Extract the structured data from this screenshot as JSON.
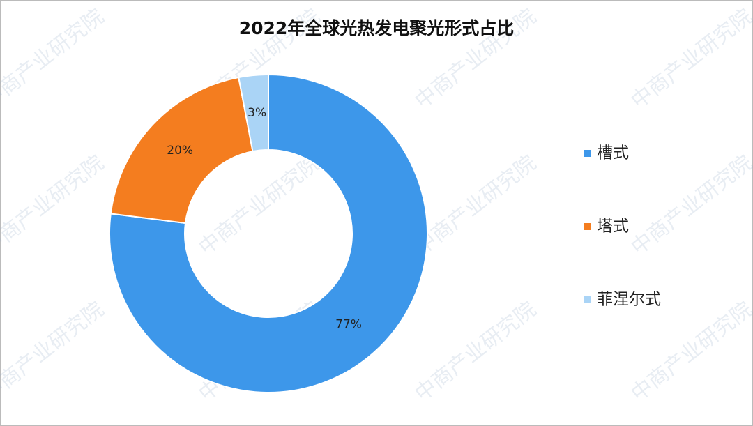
{
  "chart_data": {
    "type": "donut",
    "title": "2022年全球光热发电聚光形式占比",
    "categories": [
      "槽式",
      "塔式",
      "菲涅尔式"
    ],
    "values": [
      77,
      20,
      3
    ],
    "value_labels": [
      "77%",
      "20%",
      "3%"
    ],
    "colors": [
      "#3d97ea",
      "#f47d1f",
      "#aad4f6"
    ],
    "legend": "right",
    "watermark": "中商产业研究院"
  }
}
